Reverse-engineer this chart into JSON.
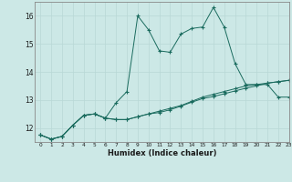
{
  "xlabel": "Humidex (Indice chaleur)",
  "background_color": "#cce8e6",
  "grid_color": "#b8d8d6",
  "line_color": "#1a6b5e",
  "x_values": [
    0,
    1,
    2,
    3,
    4,
    5,
    6,
    7,
    8,
    9,
    10,
    11,
    12,
    13,
    14,
    15,
    16,
    17,
    18,
    19,
    20,
    21,
    22,
    23
  ],
  "line1_y": [
    11.75,
    11.6,
    11.7,
    12.1,
    12.45,
    12.5,
    12.35,
    12.3,
    12.3,
    12.4,
    12.5,
    12.6,
    12.7,
    12.8,
    12.95,
    13.1,
    13.2,
    13.3,
    13.4,
    13.5,
    13.55,
    13.6,
    13.65,
    13.7
  ],
  "line2_y": [
    11.75,
    11.6,
    11.7,
    12.1,
    12.45,
    12.5,
    12.35,
    12.3,
    12.3,
    12.4,
    12.5,
    12.55,
    12.65,
    12.78,
    12.92,
    13.05,
    13.12,
    13.22,
    13.32,
    13.42,
    13.5,
    13.6,
    13.65,
    13.7
  ],
  "line3_y": [
    11.75,
    11.6,
    11.7,
    12.1,
    12.45,
    12.5,
    12.35,
    12.9,
    13.3,
    16.0,
    15.5,
    14.75,
    14.7,
    15.35,
    15.55,
    15.6,
    16.3,
    15.6,
    14.3,
    13.55,
    13.55,
    13.55,
    13.1,
    13.1
  ],
  "ylim": [
    11.5,
    16.5
  ],
  "xlim": [
    -0.5,
    23
  ],
  "yticks": [
    12,
    13,
    14,
    15,
    16
  ],
  "xticks": [
    0,
    1,
    2,
    3,
    4,
    5,
    6,
    7,
    8,
    9,
    10,
    11,
    12,
    13,
    14,
    15,
    16,
    17,
    18,
    19,
    20,
    21,
    22,
    23
  ]
}
